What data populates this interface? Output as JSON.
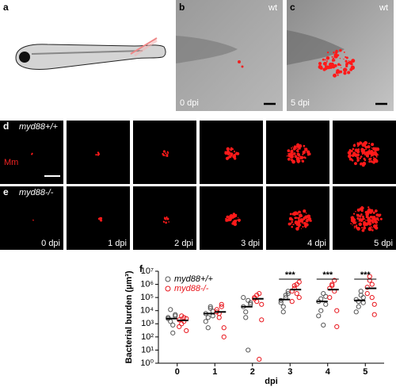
{
  "panel_labels": [
    "a",
    "b",
    "c",
    "d",
    "e",
    "f"
  ],
  "b": {
    "genotype": "wt",
    "time": "0 dpi"
  },
  "c": {
    "genotype": "wt",
    "time": "5 dpi"
  },
  "d": {
    "genotype": "myd88+/+",
    "stain": "Mm"
  },
  "e": {
    "genotype": "myd88-/-",
    "times": [
      "0 dpi",
      "1 dpi",
      "2 dpi",
      "3 dpi",
      "4 dpi",
      "5 dpi"
    ]
  },
  "chart_data": {
    "type": "strip",
    "y_label": "Bacterial burden (µm³)",
    "x_label": "dpi",
    "log_y": true,
    "xlim": [
      -0.5,
      5.5
    ],
    "xticks": [
      0,
      1,
      2,
      3,
      4,
      5
    ],
    "ylim": [
      1,
      10000000
    ],
    "yticks": [
      {
        "value": 1,
        "label": "10⁰"
      },
      {
        "value": 10,
        "label": "10¹"
      },
      {
        "value": 100,
        "label": "10²"
      },
      {
        "value": 1000,
        "label": "10³"
      },
      {
        "value": 10000,
        "label": "10⁴"
      },
      {
        "value": 100000,
        "label": "10⁵"
      },
      {
        "value": 1000000,
        "label": "10⁶"
      },
      {
        "value": 10000000,
        "label": "10⁷"
      }
    ],
    "series": [
      {
        "name": "myd88+/+",
        "color": "#555555",
        "x": [
          0,
          0,
          0,
          0,
          0,
          0,
          0,
          0,
          1,
          1,
          1,
          1,
          1,
          1,
          1,
          1,
          2,
          2,
          2,
          2,
          2,
          2,
          2,
          2,
          3,
          3,
          3,
          3,
          3,
          3,
          3,
          3,
          4,
          4,
          4,
          4,
          4,
          4,
          4,
          4,
          5,
          5,
          5,
          5,
          5,
          5,
          5,
          5
        ],
        "values": [
          3000,
          1500,
          800,
          5000,
          2500,
          12000,
          200,
          4000,
          6000,
          3000,
          15000,
          9000,
          1500,
          500,
          20000,
          4000,
          20000,
          8000,
          60000,
          30000,
          100000,
          3000,
          10,
          40000,
          60000,
          20000,
          150000,
          300000,
          40000,
          8000,
          100000,
          200000,
          50000,
          10000,
          200000,
          30000,
          4000,
          80000,
          800,
          120000,
          70000,
          20000,
          300000,
          100000,
          8000,
          50000,
          150000,
          40000
        ],
        "means": [
          2500,
          6000,
          20000,
          70000,
          50000,
          60000
        ]
      },
      {
        "name": "myd88-/-",
        "color": "#e8141b",
        "x": [
          0,
          0,
          0,
          0,
          0,
          0,
          0,
          0,
          1,
          1,
          1,
          1,
          1,
          1,
          1,
          1,
          2,
          2,
          2,
          2,
          2,
          2,
          2,
          2,
          3,
          3,
          3,
          3,
          3,
          3,
          3,
          3,
          4,
          4,
          4,
          4,
          4,
          4,
          4,
          4,
          5,
          5,
          5,
          5,
          5,
          5,
          5,
          5
        ],
        "values": [
          2000,
          1000,
          3000,
          300,
          600,
          4000,
          1500,
          2500,
          8000,
          3000,
          20000,
          100,
          12000,
          6000,
          30000,
          500,
          100000,
          50000,
          200000,
          2000,
          80000,
          150000,
          2,
          30000,
          300000,
          800000,
          1000000,
          100000,
          50000,
          500000,
          200000,
          1500000,
          500000,
          1000000,
          2000000,
          10000,
          100000,
          800000,
          300000,
          600,
          600000,
          2000000,
          1000000,
          30000,
          200000,
          4000000,
          100000,
          5000
        ],
        "means": [
          1800,
          8000,
          80000,
          400000,
          400000,
          500000
        ]
      }
    ],
    "annotations": [
      {
        "text": "***",
        "x": 3
      },
      {
        "text": "***",
        "x": 4
      },
      {
        "text": "***",
        "x": 5
      }
    ]
  }
}
